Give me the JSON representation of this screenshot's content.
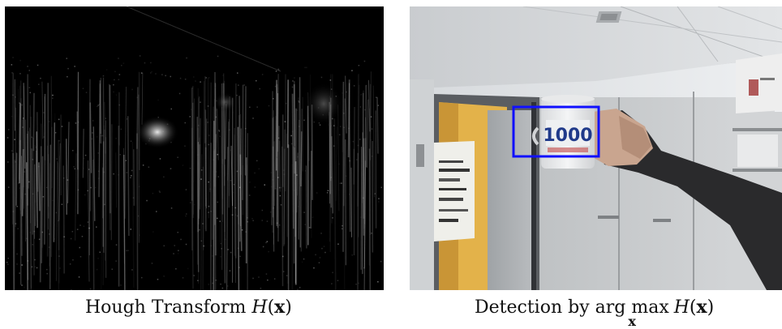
{
  "left_caption": {
    "prefix": "Hough Transform",
    "func": "H",
    "open": "(",
    "var": "x",
    "close": ")"
  },
  "right_caption": {
    "prefix": "Detection by",
    "operator": "arg max",
    "operator_sub": "x",
    "func": "H",
    "open": "(",
    "var": "x",
    "close": ")"
  },
  "mug_text": "1000",
  "colors": {
    "detection_box": "#1010ff",
    "hough_background": "#000000",
    "hough_highlight": "#e8e8e8",
    "wall": "#dde1e4",
    "door_frame": "#4a4d52",
    "yellow_wall": "#e3b24a"
  }
}
